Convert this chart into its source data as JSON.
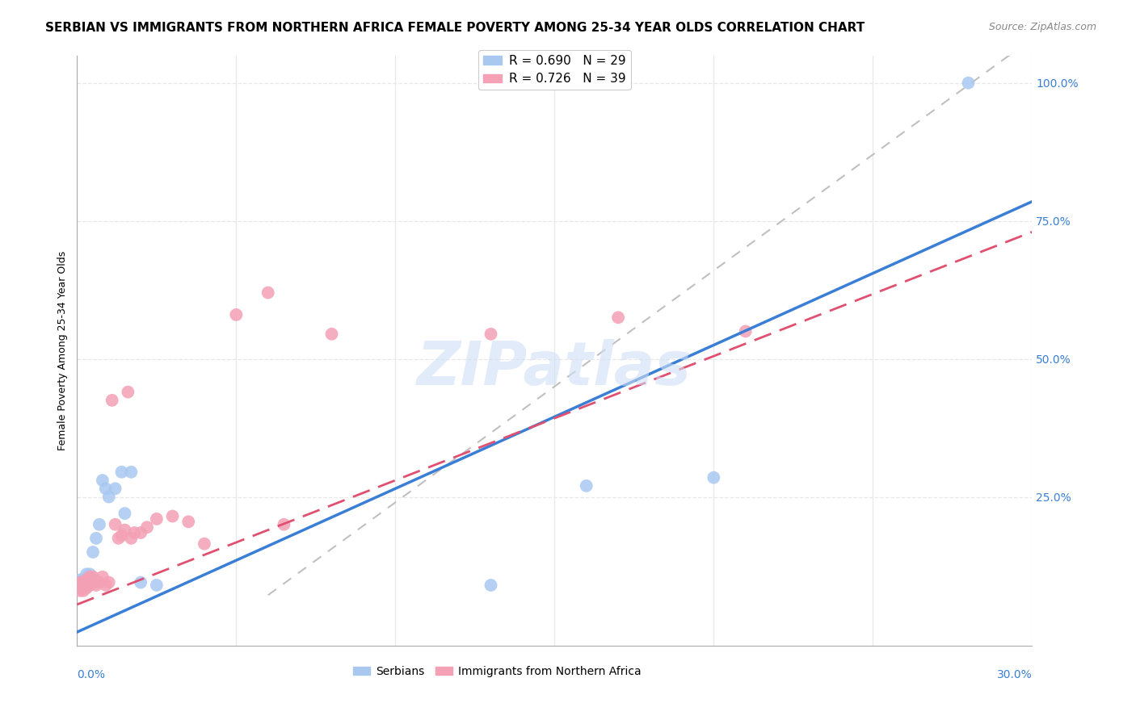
{
  "title": "SERBIAN VS IMMIGRANTS FROM NORTHERN AFRICA FEMALE POVERTY AMONG 25-34 YEAR OLDS CORRELATION CHART",
  "source": "Source: ZipAtlas.com",
  "ylabel": "Female Poverty Among 25-34 Year Olds",
  "right_yticklabels": [
    "",
    "25.0%",
    "50.0%",
    "75.0%",
    "100.0%"
  ],
  "right_ytick_vals": [
    0.0,
    0.25,
    0.5,
    0.75,
    1.0
  ],
  "legend_items": [
    {
      "label": "R = 0.690   N = 29",
      "color": "#a8c8f0"
    },
    {
      "label": "R = 0.726   N = 39",
      "color": "#f4a0b5"
    }
  ],
  "legend_label_serbians": "Serbians",
  "legend_label_immigrants": "Immigrants from Northern Africa",
  "xlim": [
    0.0,
    0.3
  ],
  "ylim": [
    -0.02,
    1.05
  ],
  "blue_scatter_x": [
    0.001,
    0.001,
    0.001,
    0.002,
    0.002,
    0.002,
    0.003,
    0.003,
    0.003,
    0.004,
    0.004,
    0.005,
    0.005,
    0.006,
    0.006,
    0.007,
    0.008,
    0.009,
    0.01,
    0.012,
    0.014,
    0.015,
    0.017,
    0.02,
    0.025,
    0.13,
    0.16,
    0.2,
    0.28
  ],
  "blue_scatter_y": [
    0.085,
    0.095,
    0.1,
    0.085,
    0.09,
    0.1,
    0.09,
    0.1,
    0.11,
    0.095,
    0.11,
    0.1,
    0.15,
    0.095,
    0.175,
    0.2,
    0.28,
    0.265,
    0.25,
    0.265,
    0.295,
    0.22,
    0.295,
    0.095,
    0.09,
    0.09,
    0.27,
    0.285,
    1.0
  ],
  "pink_scatter_x": [
    0.001,
    0.001,
    0.001,
    0.002,
    0.002,
    0.002,
    0.003,
    0.003,
    0.003,
    0.004,
    0.004,
    0.005,
    0.005,
    0.006,
    0.007,
    0.008,
    0.009,
    0.01,
    0.011,
    0.012,
    0.013,
    0.014,
    0.015,
    0.016,
    0.017,
    0.018,
    0.02,
    0.022,
    0.025,
    0.03,
    0.035,
    0.04,
    0.05,
    0.06,
    0.065,
    0.08,
    0.13,
    0.17,
    0.21
  ],
  "pink_scatter_y": [
    0.08,
    0.09,
    0.095,
    0.08,
    0.09,
    0.095,
    0.085,
    0.095,
    0.1,
    0.09,
    0.105,
    0.095,
    0.105,
    0.09,
    0.095,
    0.105,
    0.09,
    0.095,
    0.425,
    0.2,
    0.175,
    0.18,
    0.19,
    0.44,
    0.175,
    0.185,
    0.185,
    0.195,
    0.21,
    0.215,
    0.205,
    0.165,
    0.58,
    0.62,
    0.2,
    0.545,
    0.545,
    0.575,
    0.55
  ],
  "blue_line_color": "#3a7fd5",
  "pink_line_color": "#e05070",
  "gray_dashed_color": "#c0c0c0",
  "scatter_blue_color": "#a8c8f0",
  "scatter_pink_color": "#f4a0b5",
  "watermark": "ZIPatlas",
  "watermark_color": "#d0dff5",
  "grid_color": "#e8e8e8",
  "title_fontsize": 11,
  "source_fontsize": 9,
  "axis_label_fontsize": 9,
  "tick_fontsize": 10,
  "legend_fontsize": 11
}
